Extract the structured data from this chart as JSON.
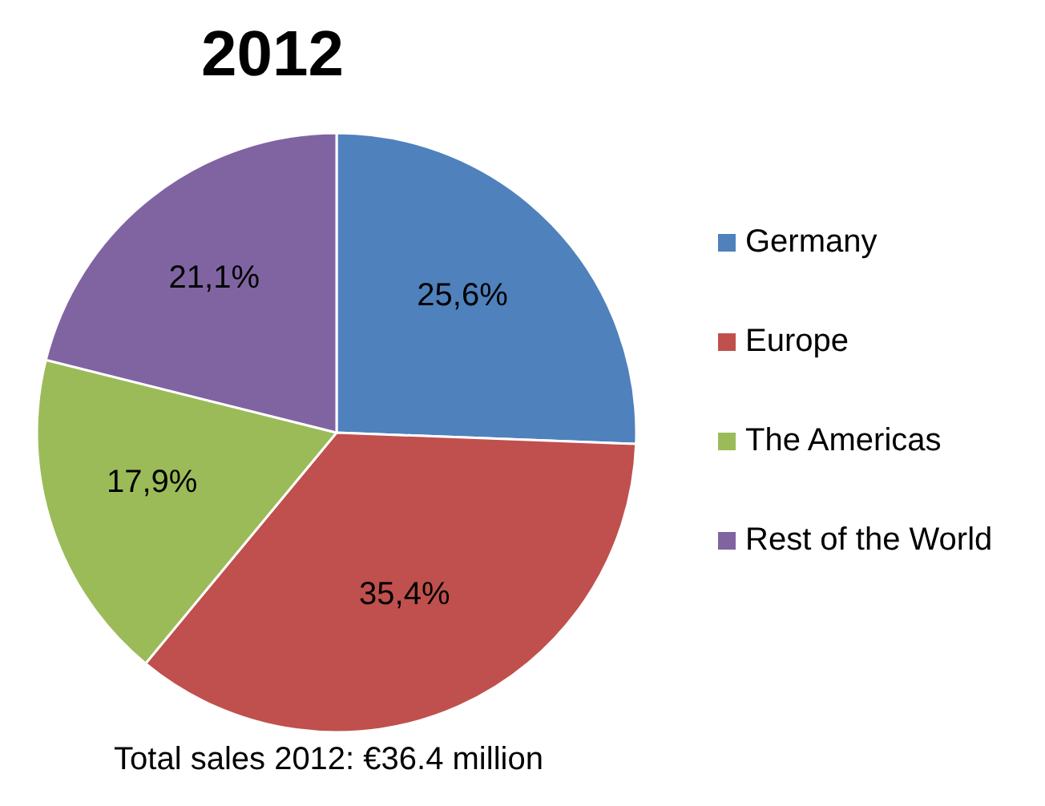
{
  "chart_data": {
    "type": "pie",
    "title": "2012",
    "categories": [
      "Germany",
      "Europe",
      "The Americas",
      "Rest of the World"
    ],
    "values": [
      25.6,
      35.4,
      17.9,
      21.1
    ],
    "value_labels": [
      "25,6%",
      "35,4%",
      "17,9%",
      "21,1%"
    ],
    "colors": [
      "#4f81bd",
      "#c0504d",
      "#9bbb59",
      "#8064a2"
    ],
    "legend": "right",
    "annotations": [
      "Total sales 2012: €36.4 million"
    ]
  }
}
